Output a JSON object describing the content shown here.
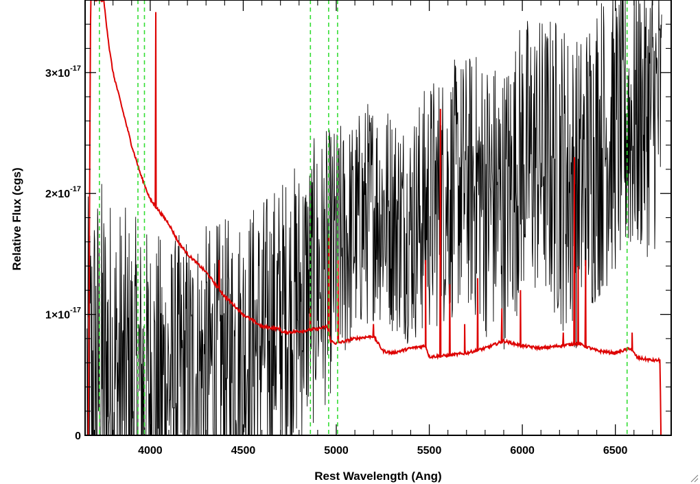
{
  "chart_data": {
    "type": "line",
    "title": "",
    "xlabel": "Rest Wavelength (Ang)",
    "ylabel": "Relative Flux (cgs)",
    "xlim": [
      3650,
      6800
    ],
    "ylim": [
      0,
      3.6e-17
    ],
    "x_ticks": [
      {
        "value": 4000,
        "label": "4000"
      },
      {
        "value": 4500,
        "label": "4500"
      },
      {
        "value": 5000,
        "label": "5000"
      },
      {
        "value": 5500,
        "label": "5500"
      },
      {
        "value": 6000,
        "label": "6000"
      },
      {
        "value": 6500,
        "label": "6500"
      }
    ],
    "y_ticks": [
      {
        "value": 0,
        "label": "0",
        "exponent": ""
      },
      {
        "value": 1e-17,
        "label": "1×10",
        "exponent": "-17"
      },
      {
        "value": 2e-17,
        "label": "2×10",
        "exponent": "-17"
      },
      {
        "value": 3e-17,
        "label": "3×10",
        "exponent": "-17"
      }
    ],
    "vlines": [
      3727,
      3934,
      3969,
      4861,
      4959,
      5007,
      6563
    ],
    "series": [
      {
        "color": "#000000",
        "style": "noisy",
        "x": [
          3660,
          3700,
          3750,
          3800,
          3900,
          4000,
          4100,
          4200,
          4300,
          4400,
          4500,
          4600,
          4700,
          4800,
          4900,
          5000,
          5100,
          5200,
          5300,
          5400,
          5500,
          5600,
          5700,
          5800,
          5900,
          6000,
          6100,
          6200,
          6300,
          6400,
          6500,
          6600,
          6700,
          6750
        ],
        "mean": [
          0.4,
          0.45,
          0.5,
          0.45,
          0.4,
          0.4,
          0.45,
          0.5,
          0.55,
          0.6,
          0.7,
          0.8,
          0.95,
          1.1,
          1.3,
          1.5,
          1.7,
          1.9,
          1.8,
          1.7,
          1.9,
          2.0,
          2.1,
          2.0,
          1.9,
          2.3,
          2.3,
          2.2,
          2.0,
          2.4,
          2.5,
          2.6,
          2.7,
          2.7
        ],
        "amp": [
          1.3,
          1.4,
          1.4,
          1.3,
          1.2,
          1.1,
          1.0,
          1.0,
          1.0,
          1.0,
          1.0,
          1.0,
          1.0,
          1.0,
          1.0,
          0.9,
          0.8,
          0.8,
          0.8,
          0.8,
          0.9,
          0.9,
          0.9,
          1.0,
          1.0,
          1.0,
          1.0,
          1.1,
          1.1,
          1.1,
          1.0,
          1.0,
          1.0,
          1.0
        ]
      },
      {
        "color": "#dd0000",
        "style": "smooth",
        "x": [
          3655,
          3668,
          3680,
          3700,
          3750,
          3780,
          3800,
          3850,
          3900,
          3950,
          4000,
          4050,
          4100,
          4150,
          4200,
          4300,
          4400,
          4500,
          4600,
          4700,
          4710,
          4800,
          4900,
          4950,
          4970,
          5000,
          5100,
          5200,
          5250,
          5300,
          5400,
          5480,
          5500,
          5600,
          5700,
          5800,
          5900,
          6000,
          6100,
          6200,
          6300,
          6400,
          6500,
          6580,
          6620,
          6700,
          6740,
          6745,
          6800
        ],
        "y": [
          0,
          0,
          3.7,
          3.6,
          3.6,
          3.2,
          3.0,
          2.7,
          2.4,
          2.15,
          1.95,
          1.85,
          1.75,
          1.6,
          1.5,
          1.35,
          1.15,
          1.0,
          0.9,
          0.88,
          0.85,
          0.86,
          0.88,
          0.9,
          0.78,
          0.76,
          0.8,
          0.82,
          0.7,
          0.68,
          0.72,
          0.74,
          0.65,
          0.66,
          0.68,
          0.72,
          0.78,
          0.74,
          0.72,
          0.74,
          0.76,
          0.7,
          0.68,
          0.72,
          0.64,
          0.62,
          0.62,
          0,
          0
        ],
        "spikes": [
          [
            4030,
            3.5
          ],
          [
            4370,
            1.45
          ],
          [
            4860,
            1.05
          ],
          [
            4960,
            1.65
          ],
          [
            5010,
            1.45
          ],
          [
            5200,
            0.92
          ],
          [
            5480,
            1.45
          ],
          [
            5560,
            2.7
          ],
          [
            5610,
            1.25
          ],
          [
            5690,
            0.92
          ],
          [
            5760,
            1.3
          ],
          [
            5890,
            1.05
          ],
          [
            5990,
            1.2
          ],
          [
            6220,
            0.85
          ],
          [
            6280,
            2.3
          ],
          [
            6300,
            1.4
          ],
          [
            6340,
            1.45
          ],
          [
            6590,
            0.85
          ]
        ]
      }
    ]
  }
}
